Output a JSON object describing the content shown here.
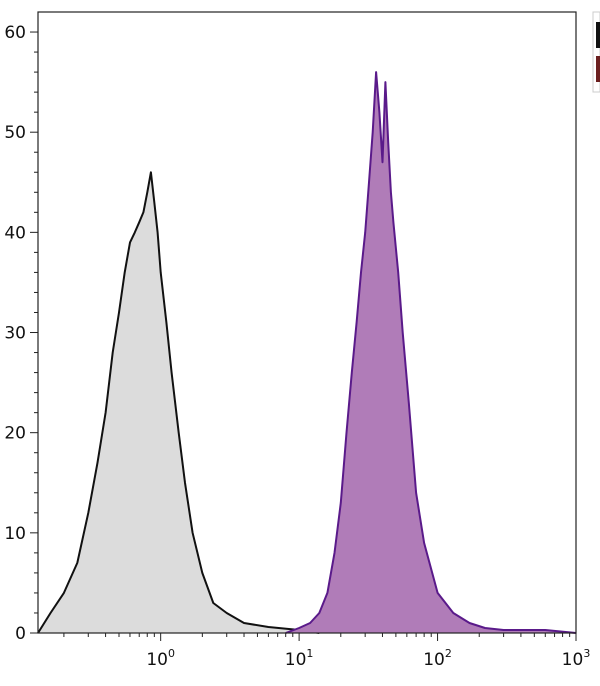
{
  "chart_data": {
    "type": "area",
    "title": "",
    "xlabel": "",
    "ylabel": "",
    "x_scale": "log",
    "xlim": [
      0.13,
      1000
    ],
    "ylim": [
      0,
      62
    ],
    "grid": false,
    "legend": {
      "position": "top-right",
      "entries": [
        "",
        ""
      ]
    },
    "x_ticks": [
      {
        "value": 1,
        "base": "10",
        "exp": "0"
      },
      {
        "value": 10,
        "base": "10",
        "exp": "1"
      },
      {
        "value": 100,
        "base": "10",
        "exp": "2"
      },
      {
        "value": 1000,
        "base": "10",
        "exp": "3"
      }
    ],
    "y_ticks": [
      {
        "value": 0,
        "label": "0"
      },
      {
        "value": 10,
        "label": "10"
      },
      {
        "value": 20,
        "label": "20"
      },
      {
        "value": 30,
        "label": "30"
      },
      {
        "value": 40,
        "label": "40"
      },
      {
        "value": 50,
        "label": "50"
      },
      {
        "value": 60,
        "label": "60"
      }
    ],
    "series": [
      {
        "stroke": "#111111",
        "fill": "#dcdcdc",
        "x": [
          0.13,
          0.16,
          0.2,
          0.25,
          0.3,
          0.35,
          0.4,
          0.45,
          0.5,
          0.55,
          0.6,
          0.65,
          0.7,
          0.75,
          0.8,
          0.85,
          0.9,
          0.95,
          1.0,
          1.1,
          1.2,
          1.35,
          1.5,
          1.7,
          2.0,
          2.4,
          3.0,
          4.0,
          6.0,
          10,
          14
        ],
        "y": [
          0,
          2,
          4,
          7,
          12,
          17,
          22,
          28,
          32,
          36,
          39,
          40,
          41,
          42,
          44,
          46,
          43,
          40,
          36,
          31,
          26,
          20,
          15,
          10,
          6,
          3,
          2,
          1,
          0.6,
          0.3,
          0
        ]
      },
      {
        "stroke": "#5a1a8a",
        "fill": "#b07cb8",
        "x": [
          8,
          10,
          12,
          14,
          16,
          18,
          20,
          22,
          24,
          26,
          28,
          30,
          32,
          34,
          36,
          38,
          40,
          42,
          44,
          46,
          48,
          52,
          56,
          62,
          70,
          80,
          100,
          130,
          170,
          220,
          300,
          600,
          1000
        ],
        "y": [
          0,
          0.5,
          1,
          2,
          4,
          8,
          13,
          20,
          26,
          31,
          36,
          40,
          45,
          50,
          56,
          52,
          47,
          55,
          49,
          44,
          41,
          36,
          30,
          23,
          14,
          9,
          4,
          2,
          1,
          0.5,
          0.3,
          0.3,
          0
        ]
      }
    ]
  }
}
